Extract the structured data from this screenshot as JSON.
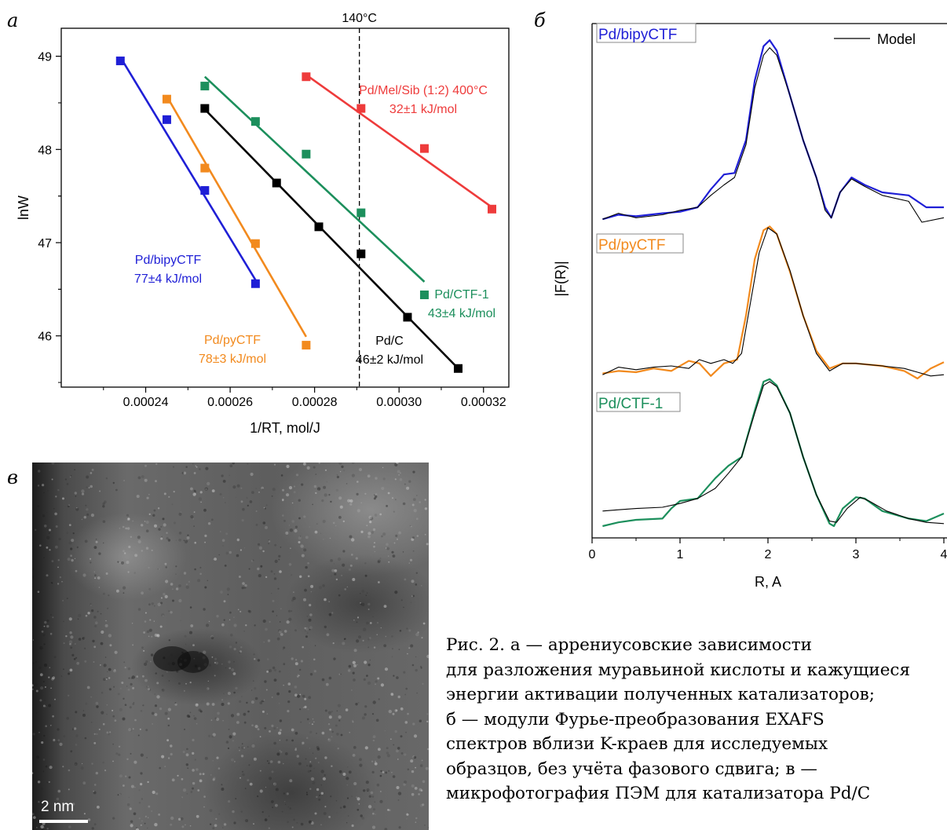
{
  "panels": {
    "a": {
      "letter": "а"
    },
    "b": {
      "letter": "б"
    },
    "c": {
      "letter": "в"
    }
  },
  "chart_data": [
    {
      "type": "scatter",
      "panel": "а",
      "xlabel": "1/RT, mol/J",
      "ylabel": "lnW",
      "xlim": [
        0.00022,
        0.000326
      ],
      "ylim": [
        45.45,
        49.3
      ],
      "xticks": [
        "0.00024",
        "0.00026",
        "0.00028",
        "0.00030",
        "0.00032"
      ],
      "xtick_values": [
        0.00024,
        0.00026,
        0.00028,
        0.0003,
        0.00032
      ],
      "yticks": [
        "46",
        "47",
        "48",
        "49"
      ],
      "ytick_values": [
        46,
        47,
        48,
        49
      ],
      "vline": {
        "x": 0.0002906,
        "label": "140°C"
      },
      "series": [
        {
          "name": "Pd/bipyCTF",
          "energy": "77±4 kJ/mol",
          "color": "#1f1fd6",
          "points": [
            [
              0.000234,
              48.95
            ],
            [
              0.000245,
              48.32
            ],
            [
              0.000254,
              47.56
            ],
            [
              0.000266,
              46.56
            ]
          ],
          "fit": [
            [
              0.000234,
              48.99
            ],
            [
              0.000266,
              46.6
            ]
          ]
        },
        {
          "name": "Pd/pyCTF",
          "energy": "78±3 kJ/mol",
          "color": "#f28a1e",
          "points": [
            [
              0.000245,
              48.54
            ],
            [
              0.000254,
              47.8
            ],
            [
              0.000266,
              46.99
            ],
            [
              0.000278,
              45.9
            ]
          ],
          "fit": [
            [
              0.000245,
              48.57
            ],
            [
              0.000278,
              45.99
            ]
          ]
        },
        {
          "name": "Pd/C",
          "energy": "46±2 kJ/mol",
          "color": "#000000",
          "points": [
            [
              0.000254,
              48.44
            ],
            [
              0.000271,
              47.64
            ],
            [
              0.000281,
              47.17
            ],
            [
              0.000291,
              46.88
            ],
            [
              0.000302,
              46.2
            ],
            [
              0.000314,
              45.65
            ]
          ],
          "fit": [
            [
              0.000254,
              48.43
            ],
            [
              0.000314,
              45.65
            ]
          ]
        },
        {
          "name": "Pd/CTF-1",
          "energy": "43±4 kJ/mol",
          "color": "#1c8f5c",
          "points": [
            [
              0.000254,
              48.68
            ],
            [
              0.000266,
              48.3
            ],
            [
              0.000278,
              47.95
            ],
            [
              0.000291,
              47.32
            ],
            [
              0.000306,
              46.44
            ]
          ],
          "fit": [
            [
              0.000254,
              48.78
            ],
            [
              0.000306,
              46.58
            ]
          ]
        },
        {
          "name": "Pd/Mel/Sib (1:2) 400°C",
          "energy": "32±1 kJ/mol",
          "color": "#ee3b3b",
          "points": [
            [
              0.000278,
              48.78
            ],
            [
              0.000291,
              48.44
            ],
            [
              0.000306,
              48.01
            ],
            [
              0.000322,
              47.36
            ]
          ],
          "fit": [
            [
              0.000278,
              48.8
            ],
            [
              0.000322,
              47.38
            ]
          ]
        }
      ]
    },
    {
      "type": "line",
      "panel": "б",
      "xlabel": "R, A",
      "ylabel": "|F(R)|",
      "xlim": [
        0,
        4
      ],
      "xticks": [
        "0",
        "1",
        "2",
        "3",
        "4"
      ],
      "xtick_values": [
        0,
        1,
        2,
        3,
        4
      ],
      "legend": "Model",
      "legend_position": "top-right",
      "stacks": [
        {
          "name": "Pd/bipyCTF",
          "color": "#1f1fd6",
          "exp": [
            [
              0.12,
              0.02
            ],
            [
              0.3,
              0.05
            ],
            [
              0.5,
              0.04
            ],
            [
              0.8,
              0.06
            ],
            [
              1.0,
              0.07
            ],
            [
              1.2,
              0.1
            ],
            [
              1.35,
              0.22
            ],
            [
              1.5,
              0.32
            ],
            [
              1.62,
              0.33
            ],
            [
              1.75,
              0.55
            ],
            [
              1.85,
              0.95
            ],
            [
              1.95,
              1.18
            ],
            [
              2.02,
              1.22
            ],
            [
              2.1,
              1.15
            ],
            [
              2.25,
              0.85
            ],
            [
              2.4,
              0.55
            ],
            [
              2.55,
              0.3
            ],
            [
              2.65,
              0.1
            ],
            [
              2.72,
              0.03
            ],
            [
              2.82,
              0.2
            ],
            [
              2.95,
              0.3
            ],
            [
              3.1,
              0.25
            ],
            [
              3.3,
              0.2
            ],
            [
              3.6,
              0.18
            ],
            [
              3.8,
              0.1
            ],
            [
              4.0,
              0.1
            ]
          ],
          "model": [
            [
              0.12,
              0.02
            ],
            [
              0.3,
              0.06
            ],
            [
              0.5,
              0.03
            ],
            [
              0.8,
              0.05
            ],
            [
              1.0,
              0.08
            ],
            [
              1.2,
              0.1
            ],
            [
              1.35,
              0.18
            ],
            [
              1.5,
              0.25
            ],
            [
              1.62,
              0.3
            ],
            [
              1.75,
              0.52
            ],
            [
              1.85,
              0.9
            ],
            [
              1.95,
              1.12
            ],
            [
              2.02,
              1.17
            ],
            [
              2.1,
              1.12
            ],
            [
              2.25,
              0.85
            ],
            [
              2.4,
              0.55
            ],
            [
              2.55,
              0.3
            ],
            [
              2.65,
              0.08
            ],
            [
              2.72,
              0.03
            ],
            [
              2.82,
              0.2
            ],
            [
              2.95,
              0.29
            ],
            [
              3.1,
              0.24
            ],
            [
              3.3,
              0.18
            ],
            [
              3.6,
              0.14
            ],
            [
              3.75,
              0.0
            ],
            [
              4.0,
              0.03
            ]
          ]
        },
        {
          "name": "Pd/pyCTF",
          "color": "#f28a1e",
          "exp": [
            [
              0.12,
              0.04
            ],
            [
              0.3,
              0.06
            ],
            [
              0.5,
              0.05
            ],
            [
              0.7,
              0.08
            ],
            [
              0.9,
              0.06
            ],
            [
              1.1,
              0.14
            ],
            [
              1.22,
              0.12
            ],
            [
              1.35,
              0.02
            ],
            [
              1.5,
              0.12
            ],
            [
              1.65,
              0.15
            ],
            [
              1.75,
              0.5
            ],
            [
              1.85,
              0.95
            ],
            [
              1.95,
              1.18
            ],
            [
              2.02,
              1.21
            ],
            [
              2.1,
              1.15
            ],
            [
              2.25,
              0.85
            ],
            [
              2.4,
              0.5
            ],
            [
              2.55,
              0.22
            ],
            [
              2.7,
              0.08
            ],
            [
              2.85,
              0.12
            ],
            [
              3.0,
              0.12
            ],
            [
              3.3,
              0.1
            ],
            [
              3.55,
              0.06
            ],
            [
              3.7,
              0.0
            ],
            [
              3.85,
              0.08
            ],
            [
              4.0,
              0.13
            ]
          ],
          "model": [
            [
              0.12,
              0.03
            ],
            [
              0.3,
              0.09
            ],
            [
              0.5,
              0.07
            ],
            [
              0.7,
              0.09
            ],
            [
              0.9,
              0.1
            ],
            [
              1.1,
              0.08
            ],
            [
              1.22,
              0.15
            ],
            [
              1.35,
              0.12
            ],
            [
              1.5,
              0.15
            ],
            [
              1.6,
              0.12
            ],
            [
              1.7,
              0.2
            ],
            [
              1.8,
              0.6
            ],
            [
              1.9,
              1.0
            ],
            [
              2.0,
              1.2
            ],
            [
              2.1,
              1.15
            ],
            [
              2.25,
              0.86
            ],
            [
              2.4,
              0.5
            ],
            [
              2.55,
              0.2
            ],
            [
              2.7,
              0.06
            ],
            [
              2.85,
              0.12
            ],
            [
              3.0,
              0.12
            ],
            [
              3.3,
              0.1
            ],
            [
              3.55,
              0.08
            ],
            [
              3.7,
              0.05
            ],
            [
              3.85,
              0.02
            ],
            [
              4.0,
              0.03
            ]
          ]
        },
        {
          "name": "Pd/CTF-1",
          "color": "#1c8f5c",
          "exp": [
            [
              0.12,
              0.0
            ],
            [
              0.3,
              0.03
            ],
            [
              0.5,
              0.05
            ],
            [
              0.8,
              0.06
            ],
            [
              0.9,
              0.14
            ],
            [
              1.0,
              0.2
            ],
            [
              1.2,
              0.22
            ],
            [
              1.4,
              0.38
            ],
            [
              1.55,
              0.48
            ],
            [
              1.7,
              0.55
            ],
            [
              1.85,
              0.92
            ],
            [
              1.95,
              1.15
            ],
            [
              2.02,
              1.17
            ],
            [
              2.1,
              1.12
            ],
            [
              2.25,
              0.9
            ],
            [
              2.4,
              0.55
            ],
            [
              2.55,
              0.25
            ],
            [
              2.7,
              0.02
            ],
            [
              2.75,
              0.0
            ],
            [
              2.85,
              0.14
            ],
            [
              3.0,
              0.23
            ],
            [
              3.1,
              0.22
            ],
            [
              3.3,
              0.12
            ],
            [
              3.6,
              0.06
            ],
            [
              3.8,
              0.04
            ],
            [
              4.0,
              0.1
            ]
          ],
          "model": [
            [
              0.12,
              0.12
            ],
            [
              0.3,
              0.13
            ],
            [
              0.5,
              0.14
            ],
            [
              0.8,
              0.15
            ],
            [
              1.0,
              0.18
            ],
            [
              1.2,
              0.22
            ],
            [
              1.4,
              0.3
            ],
            [
              1.55,
              0.42
            ],
            [
              1.7,
              0.55
            ],
            [
              1.85,
              0.9
            ],
            [
              1.95,
              1.12
            ],
            [
              2.02,
              1.15
            ],
            [
              2.1,
              1.11
            ],
            [
              2.25,
              0.9
            ],
            [
              2.4,
              0.55
            ],
            [
              2.55,
              0.25
            ],
            [
              2.7,
              0.04
            ],
            [
              2.78,
              0.03
            ],
            [
              2.9,
              0.14
            ],
            [
              3.05,
              0.23
            ],
            [
              3.15,
              0.2
            ],
            [
              3.35,
              0.12
            ],
            [
              3.6,
              0.06
            ],
            [
              3.8,
              0.03
            ],
            [
              4.0,
              0.02
            ]
          ]
        }
      ]
    }
  ],
  "tem": {
    "scale_label": "2 nm"
  },
  "caption": {
    "lines": [
      "Рис. 2. а — аррениусовские зависимости",
      "для разложения муравьиной кислоты и кажущиеся",
      "энергии активации полученных катализаторов;",
      "б — модули Фурье-преобразования EXAFS",
      "спектров вблизи K-краев для исследуемых",
      "образцов, без учёта фазового сдвига; в —",
      "микрофотография ПЭМ для катализатора Pd/C"
    ]
  }
}
